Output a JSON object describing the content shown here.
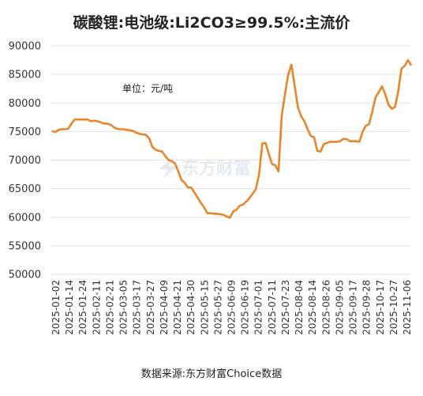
{
  "chart_data": {
    "type": "line",
    "title": "碳酸锂:电池级:Li2CO3≥99.5%:主流价",
    "unit_label": "单位：元/吨",
    "source": "数据来源:东方财富Choice数据",
    "watermark": "东方财富",
    "line_color": "#e8852b",
    "ylim": [
      50000,
      90000
    ],
    "yticks": [
      50000,
      55000,
      60000,
      65000,
      70000,
      75000,
      80000,
      85000,
      90000
    ],
    "xticks": [
      "2025-01-02",
      "2025-01-14",
      "2025-01-24",
      "2025-02-11",
      "2025-02-21",
      "2025-03-05",
      "2025-03-17",
      "2025-03-27",
      "2025-04-09",
      "2025-04-21",
      "2025-04-30",
      "2025-05-15",
      "2025-05-27",
      "2025-06-09",
      "2025-06-19",
      "2025-07-01",
      "2025-07-11",
      "2025-07-23",
      "2025-08-04",
      "2025-08-14",
      "2025-08-26",
      "2025-09-05",
      "2025-09-17",
      "2025-09-28",
      "2025-10-17",
      "2025-10-27",
      "2025-11-06"
    ],
    "series": [
      {
        "values": [
          75100,
          74900,
          75300,
          75400,
          75400,
          75500,
          76400,
          77100,
          77100,
          77100,
          77100,
          77100,
          76800,
          76900,
          76800,
          76600,
          76400,
          76400,
          76200,
          75800,
          75500,
          75400,
          75400,
          75300,
          75200,
          75100,
          74800,
          74600,
          74500,
          74400,
          73800,
          72300,
          71800,
          71600,
          71500,
          70700,
          70000,
          69800,
          69400,
          68000,
          66500,
          66000,
          65200,
          65200,
          64300,
          63400,
          62500,
          61700,
          60700,
          60700,
          60600,
          60600,
          60500,
          60400,
          60100,
          59900,
          61000,
          61300,
          62000,
          62200,
          62700,
          63300,
          64100,
          64900,
          67500,
          72900,
          73000,
          71100,
          69300,
          69100,
          68000,
          77800,
          81500,
          85000,
          86700,
          83000,
          79200,
          77700,
          76800,
          75400,
          74200,
          74000,
          71600,
          71500,
          72800,
          73000,
          73200,
          73200,
          73200,
          73300,
          73700,
          73700,
          73300,
          73300,
          73300,
          73200,
          75000,
          76000,
          76300,
          78500,
          81000,
          81900,
          82900,
          81500,
          79700,
          79000,
          79300,
          82000,
          86000,
          86500,
          87500,
          86600
        ]
      }
    ]
  }
}
